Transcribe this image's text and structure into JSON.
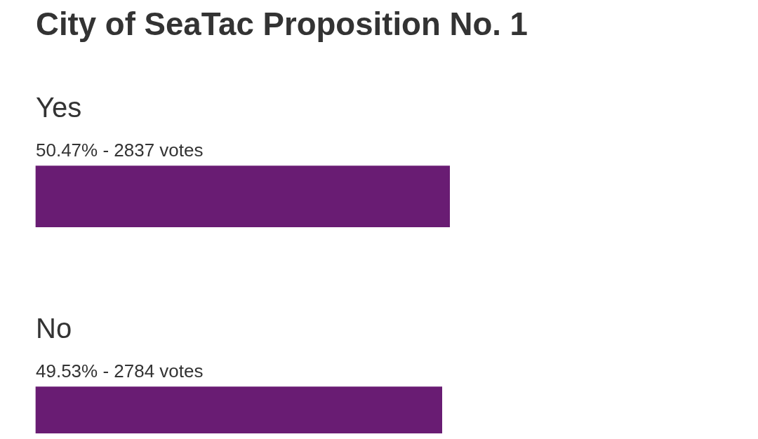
{
  "chart_data": {
    "type": "bar",
    "orientation": "horizontal",
    "title": "City of SeaTac Proposition No. 1",
    "categories": [
      "Yes",
      "No"
    ],
    "values": [
      50.47,
      49.53
    ],
    "value_labels": [
      "50.47% - 2837 votes",
      "49.53% - 2784 votes"
    ],
    "color": "#691c73"
  }
}
